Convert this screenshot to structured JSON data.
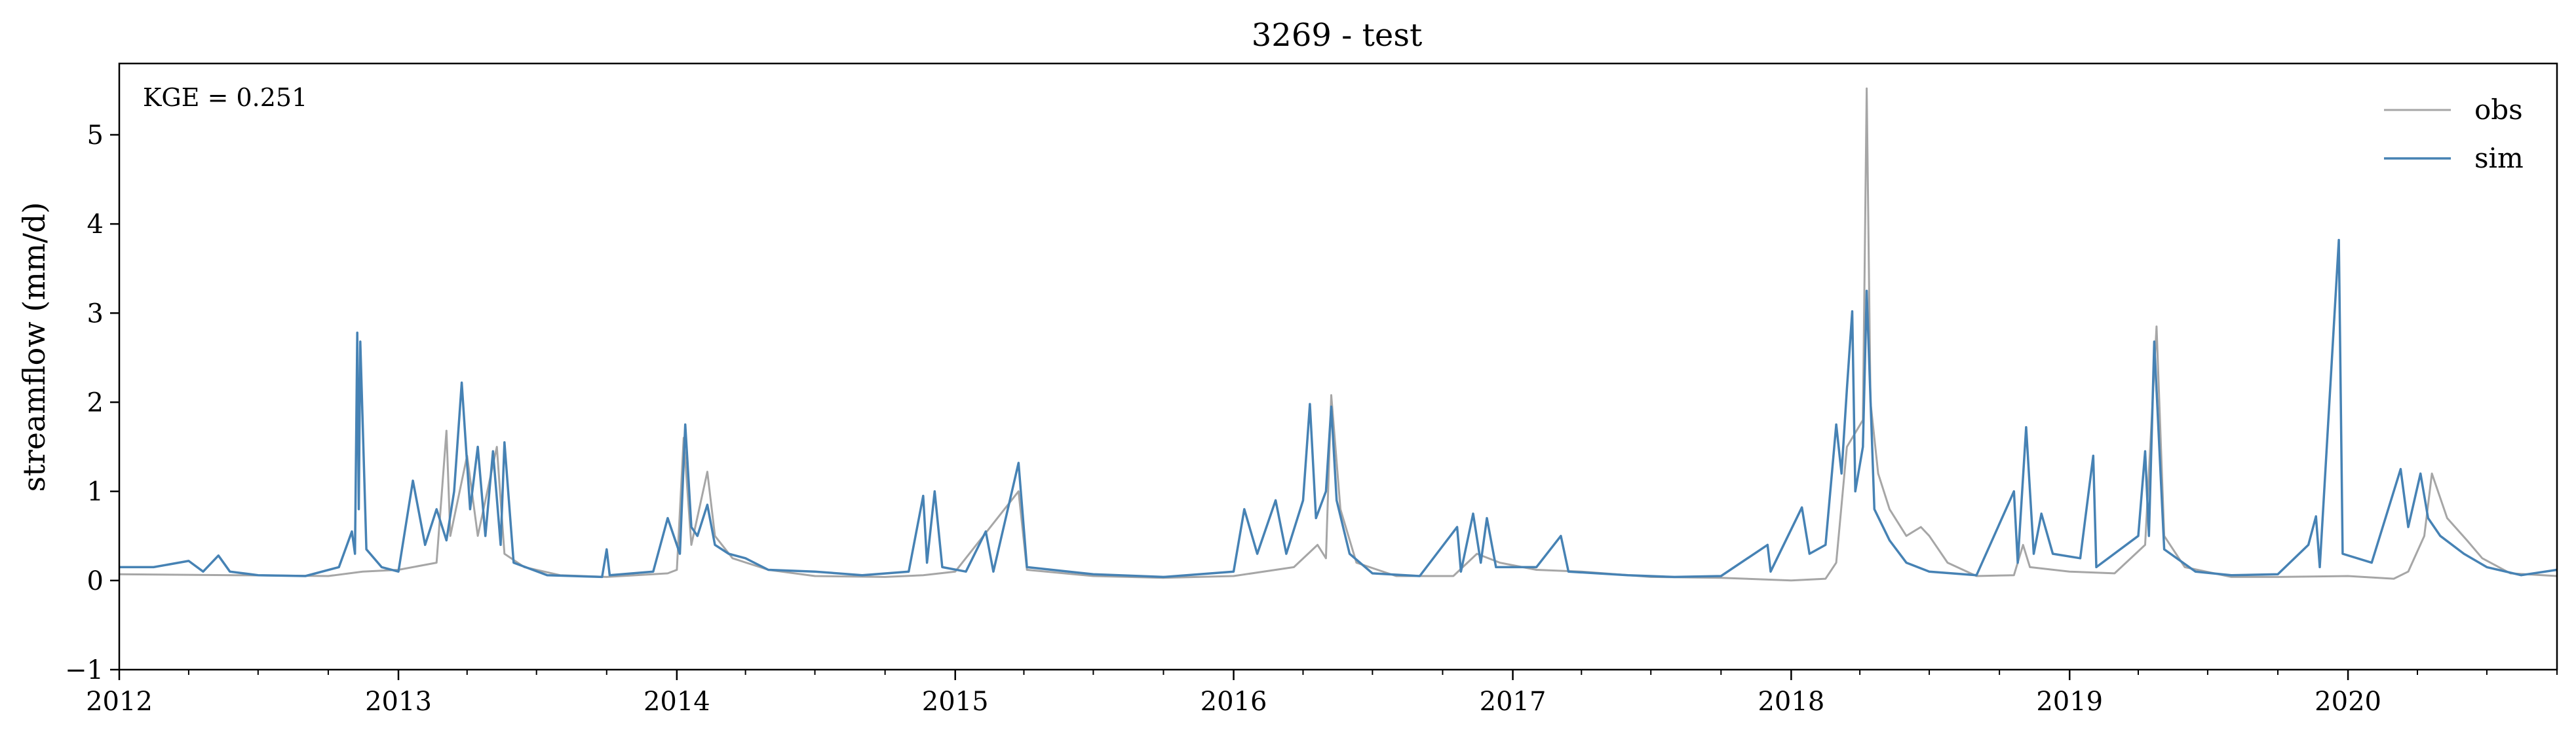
{
  "chart_data": {
    "type": "line",
    "title": "3269 - test",
    "xlabel": "",
    "ylabel": "streamflow (mm/d)",
    "xlim": [
      "2012-01-01",
      "2020-10-01"
    ],
    "ylim": [
      -1,
      5.8
    ],
    "yticks": [
      -1,
      0,
      1,
      2,
      3,
      4,
      5
    ],
    "ytick_labels": [
      "−1",
      "0",
      "1",
      "2",
      "3",
      "4",
      "5"
    ],
    "xticks": [
      "2012-01-01",
      "2013-01-01",
      "2014-01-01",
      "2015-01-01",
      "2016-01-01",
      "2017-01-01",
      "2018-01-01",
      "2019-01-01",
      "2020-01-01"
    ],
    "xtick_labels": [
      "2012",
      "2013",
      "2014",
      "2015",
      "2016",
      "2017",
      "2018",
      "2019",
      "2020"
    ],
    "grid": false,
    "legend": {
      "placement": "top-right",
      "entries": [
        "obs",
        "sim"
      ]
    },
    "annotation": "KGE = 0.251",
    "series": [
      {
        "name": "obs",
        "color": "#a6a6a6",
        "points": [
          [
            "2012-01-01",
            0.07
          ],
          [
            "2012-06-01",
            0.06
          ],
          [
            "2012-10-01",
            0.05
          ],
          [
            "2012-11-15",
            0.1
          ],
          [
            "2013-01-01",
            0.12
          ],
          [
            "2013-02-20",
            0.2
          ],
          [
            "2013-03-05",
            1.68
          ],
          [
            "2013-03-10",
            0.5
          ],
          [
            "2013-04-01",
            1.4
          ],
          [
            "2013-04-15",
            0.5
          ],
          [
            "2013-05-10",
            1.5
          ],
          [
            "2013-05-20",
            0.3
          ],
          [
            "2013-06-15",
            0.15
          ],
          [
            "2013-08-01",
            0.06
          ],
          [
            "2013-10-01",
            0.04
          ],
          [
            "2013-12-20",
            0.08
          ],
          [
            "2014-01-01",
            0.12
          ],
          [
            "2014-01-10",
            1.6
          ],
          [
            "2014-01-20",
            0.4
          ],
          [
            "2014-02-10",
            1.22
          ],
          [
            "2014-02-20",
            0.5
          ],
          [
            "2014-03-15",
            0.25
          ],
          [
            "2014-05-01",
            0.12
          ],
          [
            "2014-07-01",
            0.05
          ],
          [
            "2014-10-01",
            0.04
          ],
          [
            "2014-11-20",
            0.06
          ],
          [
            "2015-01-01",
            0.1
          ],
          [
            "2015-03-25",
            1.0
          ],
          [
            "2015-04-05",
            0.12
          ],
          [
            "2015-07-01",
            0.05
          ],
          [
            "2015-10-01",
            0.03
          ],
          [
            "2016-01-01",
            0.05
          ],
          [
            "2016-03-20",
            0.15
          ],
          [
            "2016-04-20",
            0.4
          ],
          [
            "2016-05-01",
            0.25
          ],
          [
            "2016-05-08",
            2.08
          ],
          [
            "2016-05-20",
            0.8
          ],
          [
            "2016-06-10",
            0.2
          ],
          [
            "2016-08-01",
            0.05
          ],
          [
            "2016-10-15",
            0.05
          ],
          [
            "2016-11-15",
            0.3
          ],
          [
            "2016-12-15",
            0.2
          ],
          [
            "2017-02-01",
            0.12
          ],
          [
            "2017-04-01",
            0.1
          ],
          [
            "2017-07-01",
            0.04
          ],
          [
            "2017-10-01",
            0.03
          ],
          [
            "2018-01-01",
            0.0
          ],
          [
            "2018-02-15",
            0.02
          ],
          [
            "2018-03-01",
            0.2
          ],
          [
            "2018-03-15",
            1.5
          ],
          [
            "2018-04-05",
            1.8
          ],
          [
            "2018-04-10",
            5.52
          ],
          [
            "2018-04-15",
            2.0
          ],
          [
            "2018-04-25",
            1.2
          ],
          [
            "2018-05-10",
            0.8
          ],
          [
            "2018-06-01",
            0.5
          ],
          [
            "2018-06-20",
            0.6
          ],
          [
            "2018-07-01",
            0.5
          ],
          [
            "2018-07-25",
            0.2
          ],
          [
            "2018-09-01",
            0.05
          ],
          [
            "2018-10-20",
            0.06
          ],
          [
            "2018-11-01",
            0.4
          ],
          [
            "2018-11-10",
            0.15
          ],
          [
            "2019-01-01",
            0.1
          ],
          [
            "2019-03-01",
            0.08
          ],
          [
            "2019-04-10",
            0.4
          ],
          [
            "2019-04-25",
            2.85
          ],
          [
            "2019-05-05",
            0.5
          ],
          [
            "2019-06-01",
            0.15
          ],
          [
            "2019-08-01",
            0.04
          ],
          [
            "2019-10-01",
            0.04
          ],
          [
            "2020-01-01",
            0.05
          ],
          [
            "2020-03-01",
            0.02
          ],
          [
            "2020-03-20",
            0.1
          ],
          [
            "2020-04-10",
            0.5
          ],
          [
            "2020-04-20",
            1.2
          ],
          [
            "2020-05-10",
            0.7
          ],
          [
            "2020-06-05",
            0.45
          ],
          [
            "2020-06-25",
            0.25
          ],
          [
            "2020-08-01",
            0.08
          ],
          [
            "2020-10-01",
            0.05
          ]
        ]
      },
      {
        "name": "sim",
        "color": "#4682b4",
        "points": [
          [
            "2012-01-01",
            0.15
          ],
          [
            "2012-02-15",
            0.15
          ],
          [
            "2012-04-01",
            0.22
          ],
          [
            "2012-04-20",
            0.1
          ],
          [
            "2012-05-10",
            0.28
          ],
          [
            "2012-05-25",
            0.1
          ],
          [
            "2012-07-01",
            0.06
          ],
          [
            "2012-09-01",
            0.05
          ],
          [
            "2012-10-15",
            0.15
          ],
          [
            "2012-11-01",
            0.55
          ],
          [
            "2012-11-05",
            0.3
          ],
          [
            "2012-11-08",
            2.78
          ],
          [
            "2012-11-10",
            0.8
          ],
          [
            "2012-11-12",
            2.68
          ],
          [
            "2012-11-20",
            0.35
          ],
          [
            "2012-12-10",
            0.15
          ],
          [
            "2013-01-01",
            0.1
          ],
          [
            "2013-01-20",
            1.12
          ],
          [
            "2013-02-05",
            0.4
          ],
          [
            "2013-02-20",
            0.8
          ],
          [
            "2013-03-05",
            0.45
          ],
          [
            "2013-03-15",
            1.0
          ],
          [
            "2013-03-25",
            2.22
          ],
          [
            "2013-04-05",
            0.8
          ],
          [
            "2013-04-15",
            1.5
          ],
          [
            "2013-04-25",
            0.5
          ],
          [
            "2013-05-05",
            1.45
          ],
          [
            "2013-05-15",
            0.4
          ],
          [
            "2013-05-20",
            1.55
          ],
          [
            "2013-06-01",
            0.2
          ],
          [
            "2013-07-15",
            0.06
          ],
          [
            "2013-09-25",
            0.04
          ],
          [
            "2013-10-01",
            0.35
          ],
          [
            "2013-10-05",
            0.06
          ],
          [
            "2013-12-01",
            0.1
          ],
          [
            "2013-12-20",
            0.7
          ],
          [
            "2014-01-05",
            0.3
          ],
          [
            "2014-01-12",
            1.75
          ],
          [
            "2014-01-20",
            0.6
          ],
          [
            "2014-01-28",
            0.5
          ],
          [
            "2014-02-10",
            0.85
          ],
          [
            "2014-02-20",
            0.4
          ],
          [
            "2014-03-10",
            0.3
          ],
          [
            "2014-04-01",
            0.25
          ],
          [
            "2014-05-01",
            0.12
          ],
          [
            "2014-07-01",
            0.1
          ],
          [
            "2014-09-01",
            0.06
          ],
          [
            "2014-11-01",
            0.1
          ],
          [
            "2014-11-20",
            0.95
          ],
          [
            "2014-11-25",
            0.2
          ],
          [
            "2014-12-05",
            1.0
          ],
          [
            "2014-12-15",
            0.15
          ],
          [
            "2015-01-15",
            0.1
          ],
          [
            "2015-02-10",
            0.55
          ],
          [
            "2015-02-20",
            0.1
          ],
          [
            "2015-03-25",
            1.32
          ],
          [
            "2015-04-05",
            0.15
          ],
          [
            "2015-07-01",
            0.07
          ],
          [
            "2015-10-01",
            0.04
          ],
          [
            "2016-01-01",
            0.1
          ],
          [
            "2016-01-15",
            0.8
          ],
          [
            "2016-02-01",
            0.3
          ],
          [
            "2016-02-25",
            0.9
          ],
          [
            "2016-03-10",
            0.3
          ],
          [
            "2016-04-01",
            0.9
          ],
          [
            "2016-04-10",
            1.98
          ],
          [
            "2016-04-18",
            0.7
          ],
          [
            "2016-05-01",
            1.0
          ],
          [
            "2016-05-08",
            1.95
          ],
          [
            "2016-05-15",
            0.9
          ],
          [
            "2016-06-01",
            0.3
          ],
          [
            "2016-07-01",
            0.08
          ],
          [
            "2016-09-01",
            0.05
          ],
          [
            "2016-10-20",
            0.6
          ],
          [
            "2016-10-25",
            0.1
          ],
          [
            "2016-11-10",
            0.75
          ],
          [
            "2016-11-20",
            0.2
          ],
          [
            "2016-11-28",
            0.7
          ],
          [
            "2016-12-10",
            0.15
          ],
          [
            "2017-02-01",
            0.15
          ],
          [
            "2017-03-05",
            0.5
          ],
          [
            "2017-03-15",
            0.1
          ],
          [
            "2017-06-01",
            0.06
          ],
          [
            "2017-08-01",
            0.04
          ],
          [
            "2017-10-01",
            0.05
          ],
          [
            "2017-12-01",
            0.4
          ],
          [
            "2017-12-05",
            0.1
          ],
          [
            "2018-01-15",
            0.82
          ],
          [
            "2018-01-25",
            0.3
          ],
          [
            "2018-02-15",
            0.4
          ],
          [
            "2018-03-01",
            1.75
          ],
          [
            "2018-03-08",
            1.2
          ],
          [
            "2018-03-15",
            2.15
          ],
          [
            "2018-03-22",
            3.02
          ],
          [
            "2018-03-26",
            1.0
          ],
          [
            "2018-04-05",
            1.5
          ],
          [
            "2018-04-10",
            3.25
          ],
          [
            "2018-04-20",
            0.8
          ],
          [
            "2018-05-10",
            0.45
          ],
          [
            "2018-06-01",
            0.2
          ],
          [
            "2018-07-01",
            0.1
          ],
          [
            "2018-09-01",
            0.06
          ],
          [
            "2018-10-20",
            1.0
          ],
          [
            "2018-10-25",
            0.2
          ],
          [
            "2018-11-05",
            1.72
          ],
          [
            "2018-11-15",
            0.3
          ],
          [
            "2018-11-25",
            0.75
          ],
          [
            "2018-12-10",
            0.3
          ],
          [
            "2019-01-15",
            0.25
          ],
          [
            "2019-02-01",
            1.4
          ],
          [
            "2019-02-05",
            0.15
          ],
          [
            "2019-04-01",
            0.5
          ],
          [
            "2019-04-10",
            1.45
          ],
          [
            "2019-04-15",
            0.5
          ],
          [
            "2019-04-22",
            2.68
          ],
          [
            "2019-05-05",
            0.35
          ],
          [
            "2019-06-15",
            0.1
          ],
          [
            "2019-08-01",
            0.06
          ],
          [
            "2019-10-01",
            0.07
          ],
          [
            "2019-11-10",
            0.4
          ],
          [
            "2019-11-20",
            0.72
          ],
          [
            "2019-11-25",
            0.15
          ],
          [
            "2019-12-20",
            3.82
          ],
          [
            "2019-12-25",
            0.3
          ],
          [
            "2020-02-01",
            0.2
          ],
          [
            "2020-03-10",
            1.25
          ],
          [
            "2020-03-20",
            0.6
          ],
          [
            "2020-04-05",
            1.2
          ],
          [
            "2020-04-15",
            0.7
          ],
          [
            "2020-05-01",
            0.5
          ],
          [
            "2020-06-01",
            0.3
          ],
          [
            "2020-07-01",
            0.15
          ],
          [
            "2020-08-15",
            0.06
          ],
          [
            "2020-10-01",
            0.12
          ]
        ]
      }
    ]
  }
}
